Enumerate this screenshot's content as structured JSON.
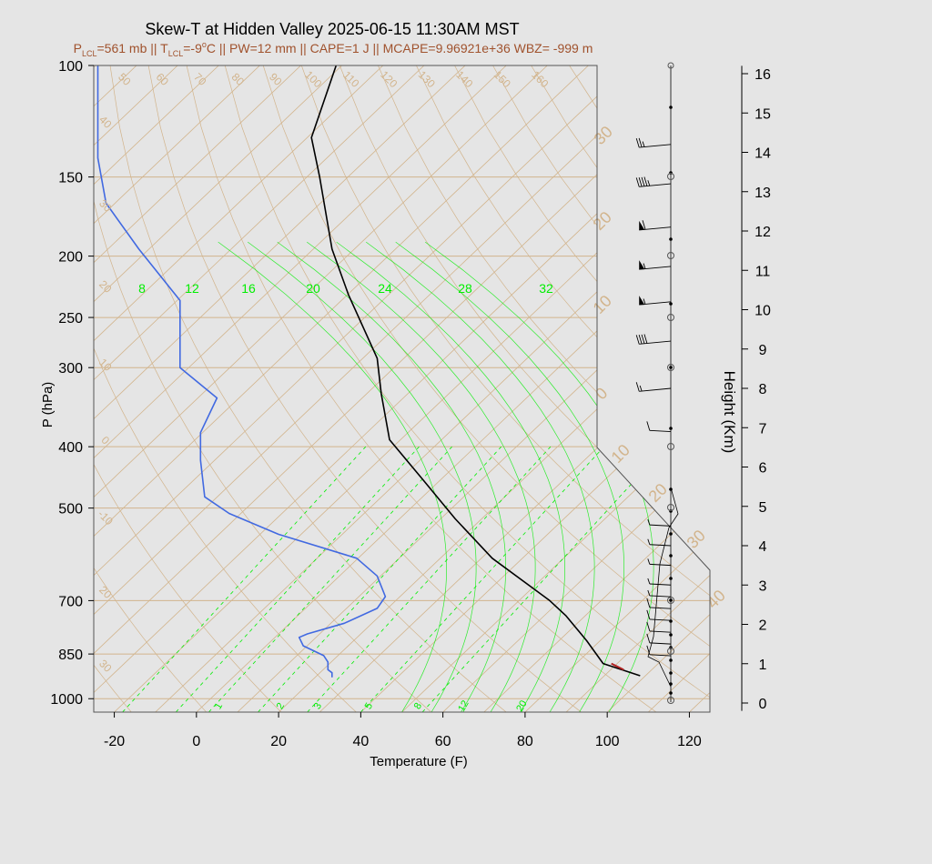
{
  "title": "Skew-T at Hidden Valley 2025-06-15 11:30AM MST",
  "subtitle": {
    "p_lcl_label": "P",
    "p_lcl_sub": "LCL",
    "p_lcl_val": "=561 mb || ",
    "t_lcl_label": "T",
    "t_lcl_sub": "LCL",
    "t_lcl_val": "=-9",
    "deg": "o",
    "rest": "C || PW=12 mm || CAPE=1 J || MCAPE=9.96921e+36 WBZ= -999 m"
  },
  "colors": {
    "background": "#e5e5e5",
    "temperature": "#000000",
    "dewpoint": "#4169e1",
    "parcel_hot": "#b22222",
    "isotherm": "#d2b48c",
    "mixing_ratio": "#00ee00",
    "wind": "#000000"
  },
  "chart_data": {
    "type": "skew-t",
    "xlabel": "Temperature (F)",
    "ylabel": "P (hPa)",
    "y2label": "Height (Km)",
    "xlim": [
      -25,
      125
    ],
    "ylim_hpa": [
      1050,
      100
    ],
    "x_ticks": [
      "-20",
      "0",
      "20",
      "40",
      "60",
      "80",
      "100",
      "120"
    ],
    "p_ticks": [
      "100",
      "150",
      "200",
      "250",
      "300",
      "400",
      "500",
      "700",
      "850",
      "1000"
    ],
    "height_ticks": [
      "0",
      "1",
      "2",
      "3",
      "4",
      "5",
      "6",
      "7",
      "8",
      "9",
      "10",
      "11",
      "12",
      "13",
      "14",
      "15",
      "16"
    ],
    "isotherm_labels_top": [
      "50",
      "60",
      "70",
      "80",
      "90",
      "100",
      "110",
      "120",
      "130",
      "140",
      "150",
      "160"
    ],
    "isotherm_labels_left": [
      "40",
      "30",
      "20",
      "10",
      "0",
      "-10",
      "20",
      "30"
    ],
    "moist_adiabat_labels": [
      "30",
      "20",
      "10",
      "0",
      "10",
      "20",
      "30",
      "40"
    ],
    "mixing_ratio_top": [
      "8",
      "12",
      "16",
      "20",
      "24",
      "28",
      "32"
    ],
    "mixing_ratio_bottom": [
      "1",
      "2",
      "3",
      "5",
      "8",
      "12",
      "20"
    ],
    "temperature": [
      {
        "p": 920,
        "t": 108
      },
      {
        "p": 880,
        "t": 99
      },
      {
        "p": 810,
        "t": 95
      },
      {
        "p": 740,
        "t": 90
      },
      {
        "p": 700,
        "t": 86
      },
      {
        "p": 600,
        "t": 72
      },
      {
        "p": 520,
        "t": 63
      },
      {
        "p": 450,
        "t": 55
      },
      {
        "p": 390,
        "t": 47
      },
      {
        "p": 330,
        "t": 45
      },
      {
        "p": 290,
        "t": 44
      },
      {
        "p": 230,
        "t": 37
      },
      {
        "p": 195,
        "t": 33
      },
      {
        "p": 150,
        "t": 30
      },
      {
        "p": 130,
        "t": 28
      },
      {
        "p": 100,
        "t": 34
      }
    ],
    "dewpoint": [
      {
        "p": 925,
        "t": 33
      },
      {
        "p": 910,
        "t": 33
      },
      {
        "p": 900,
        "t": 32
      },
      {
        "p": 875,
        "t": 32
      },
      {
        "p": 855,
        "t": 31
      },
      {
        "p": 825,
        "t": 26
      },
      {
        "p": 800,
        "t": 25
      },
      {
        "p": 790,
        "t": 27
      },
      {
        "p": 760,
        "t": 36
      },
      {
        "p": 720,
        "t": 44
      },
      {
        "p": 690,
        "t": 46
      },
      {
        "p": 640,
        "t": 44
      },
      {
        "p": 600,
        "t": 39
      },
      {
        "p": 550,
        "t": 20
      },
      {
        "p": 510,
        "t": 8
      },
      {
        "p": 480,
        "t": 2
      },
      {
        "p": 420,
        "t": 1
      },
      {
        "p": 380,
        "t": 1
      },
      {
        "p": 335,
        "t": 5
      },
      {
        "p": 300,
        "t": -4
      },
      {
        "p": 235,
        "t": -4
      },
      {
        "p": 195,
        "t": -14
      },
      {
        "p": 165,
        "t": -22
      },
      {
        "p": 140,
        "t": -24
      },
      {
        "p": 100,
        "t": -24
      }
    ],
    "parcel_segment": [
      {
        "p": 900,
        "t": 104
      },
      {
        "p": 880,
        "t": 101
      }
    ],
    "wind_barbs": [
      {
        "km": 14.2,
        "kt": 25
      },
      {
        "km": 13.2,
        "kt": 45
      },
      {
        "km": 12.1,
        "kt": 60
      },
      {
        "km": 11.1,
        "kt": 55
      },
      {
        "km": 10.2,
        "kt": 55
      },
      {
        "km": 9.2,
        "kt": 40
      },
      {
        "km": 8.0,
        "kt": 15
      },
      {
        "km": 6.9,
        "kt": 10
      },
      {
        "km": 4.5,
        "kt": 5
      },
      {
        "km": 4.0,
        "kt": 5
      },
      {
        "km": 3.5,
        "kt": 5
      },
      {
        "km": 3.0,
        "kt": 5
      },
      {
        "km": 2.7,
        "kt": 5
      },
      {
        "km": 2.4,
        "kt": 10
      },
      {
        "km": 2.1,
        "kt": 10
      },
      {
        "km": 1.8,
        "kt": 10
      },
      {
        "km": 1.5,
        "kt": 10
      },
      {
        "km": 1.2,
        "kt": 10
      }
    ],
    "grid": true
  }
}
